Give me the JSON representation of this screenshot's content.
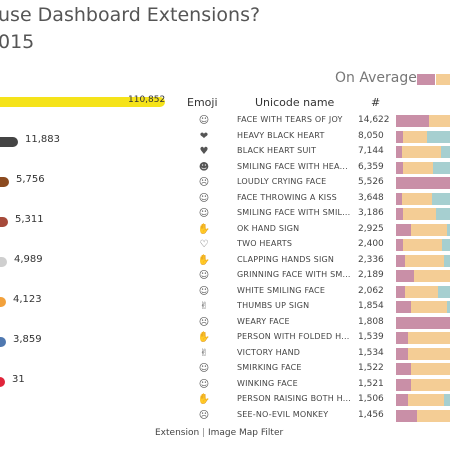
{
  "header": {
    "title_line1": "use Dashboard Extensions?",
    "title_line2": "015"
  },
  "on_average_label": "On Average",
  "colors": {
    "pink": "#c98fa7",
    "orange": "#f4cd95",
    "teal": "#a6cfd0",
    "yellow": "#f5e31a"
  },
  "left_bars": [
    {
      "value": "110,852",
      "fill": 1.0,
      "color": "#f5e31a"
    },
    {
      "value": "11,883",
      "fill": 0.107,
      "color": "#444444"
    },
    {
      "value": "5,756",
      "fill": 0.052,
      "color": "#8b4a1f"
    },
    {
      "value": "5,311",
      "fill": 0.048,
      "color": "#a64a3a"
    },
    {
      "value": "4,989",
      "fill": 0.045,
      "color": "#cfcfcf"
    },
    {
      "value": "4,123",
      "fill": 0.037,
      "color": "#f2a13c"
    },
    {
      "value": "3,859",
      "fill": 0.035,
      "color": "#4f78b0"
    },
    {
      "value": "31",
      "fill": 0.0003,
      "color": "#e0243a"
    }
  ],
  "table": {
    "headers": {
      "emoji": "Emoji",
      "name": "Unicode name",
      "count": "#"
    },
    "rows": [
      {
        "icon": "face-with-tears-of-joy-icon",
        "glyph": "☺",
        "name": "FACE WITH TEARS OF JOY",
        "count": "14,622",
        "mix": [
          0.55,
          0.35,
          0.1
        ]
      },
      {
        "icon": "heavy-black-heart-icon",
        "glyph": "❤",
        "name": "HEAVY BLACK HEART",
        "count": "8,050",
        "mix": [
          0.12,
          0.4,
          0.48
        ]
      },
      {
        "icon": "black-heart-suit-icon",
        "glyph": "♥",
        "name": "BLACK HEART SUIT",
        "count": "7,144",
        "mix": [
          0.1,
          0.65,
          0.25
        ]
      },
      {
        "icon": "smiling-face-icon",
        "glyph": "☻",
        "name": "SMILING FACE WITH HEA...",
        "count": "6,359",
        "mix": [
          0.12,
          0.5,
          0.38
        ]
      },
      {
        "icon": "loudly-crying-face-icon",
        "glyph": "☹",
        "name": "LOUDLY CRYING FACE",
        "count": "5,526",
        "mix": [
          1.0,
          0.0,
          0.0
        ]
      },
      {
        "icon": "face-throwing-kiss-icon",
        "glyph": "☺",
        "name": "FACE THROWING A KISS",
        "count": "3,648",
        "mix": [
          0.1,
          0.5,
          0.4
        ]
      },
      {
        "icon": "smiling-face-smiling-eyes-icon",
        "glyph": "☺",
        "name": "SMILING FACE WITH SMIL...",
        "count": "3,186",
        "mix": [
          0.12,
          0.55,
          0.33
        ]
      },
      {
        "icon": "ok-hand-icon",
        "glyph": "✋",
        "name": "OK HAND SIGN",
        "count": "2,925",
        "mix": [
          0.25,
          0.6,
          0.15
        ]
      },
      {
        "icon": "two-hearts-icon",
        "glyph": "♡",
        "name": "TWO HEARTS",
        "count": "2,400",
        "mix": [
          0.12,
          0.65,
          0.23
        ]
      },
      {
        "icon": "clapping-hands-icon",
        "glyph": "✋",
        "name": "CLAPPING HANDS SIGN",
        "count": "2,336",
        "mix": [
          0.15,
          0.65,
          0.2
        ]
      },
      {
        "icon": "grinning-face-icon",
        "glyph": "☺",
        "name": "GRINNING FACE WITH SM...",
        "count": "2,189",
        "mix": [
          0.3,
          0.7,
          0.0
        ]
      },
      {
        "icon": "white-smiling-face-icon",
        "glyph": "☺",
        "name": "WHITE SMILING FACE",
        "count": "2,062",
        "mix": [
          0.15,
          0.55,
          0.3
        ]
      },
      {
        "icon": "thumbs-up-icon",
        "glyph": "✌",
        "name": "THUMBS UP SIGN",
        "count": "1,854",
        "mix": [
          0.25,
          0.6,
          0.15
        ]
      },
      {
        "icon": "weary-face-icon",
        "glyph": "☹",
        "name": "WEARY FACE",
        "count": "1,808",
        "mix": [
          1.0,
          0.0,
          0.0
        ]
      },
      {
        "icon": "folded-hands-icon",
        "glyph": "✋",
        "name": "PERSON WITH FOLDED H...",
        "count": "1,539",
        "mix": [
          0.2,
          0.8,
          0.0
        ]
      },
      {
        "icon": "victory-hand-icon",
        "glyph": "✌",
        "name": "VICTORY HAND",
        "count": "1,534",
        "mix": [
          0.2,
          0.8,
          0.0
        ]
      },
      {
        "icon": "smirking-face-icon",
        "glyph": "☺",
        "name": "SMIRKING FACE",
        "count": "1,522",
        "mix": [
          0.25,
          0.75,
          0.0
        ]
      },
      {
        "icon": "winking-face-icon",
        "glyph": "☺",
        "name": "WINKING FACE",
        "count": "1,521",
        "mix": [
          0.25,
          0.75,
          0.0
        ]
      },
      {
        "icon": "raising-both-hands-icon",
        "glyph": "✋",
        "name": "PERSON RAISING BOTH H...",
        "count": "1,506",
        "mix": [
          0.2,
          0.6,
          0.2
        ]
      },
      {
        "icon": "see-no-evil-monkey-icon",
        "glyph": "☹",
        "name": "SEE-NO-EVIL MONKEY",
        "count": "1,456",
        "mix": [
          0.35,
          0.65,
          0.0
        ]
      }
    ]
  },
  "footer": {
    "extension": "Extension",
    "separator": "|",
    "filter": "Image Map Filter"
  }
}
